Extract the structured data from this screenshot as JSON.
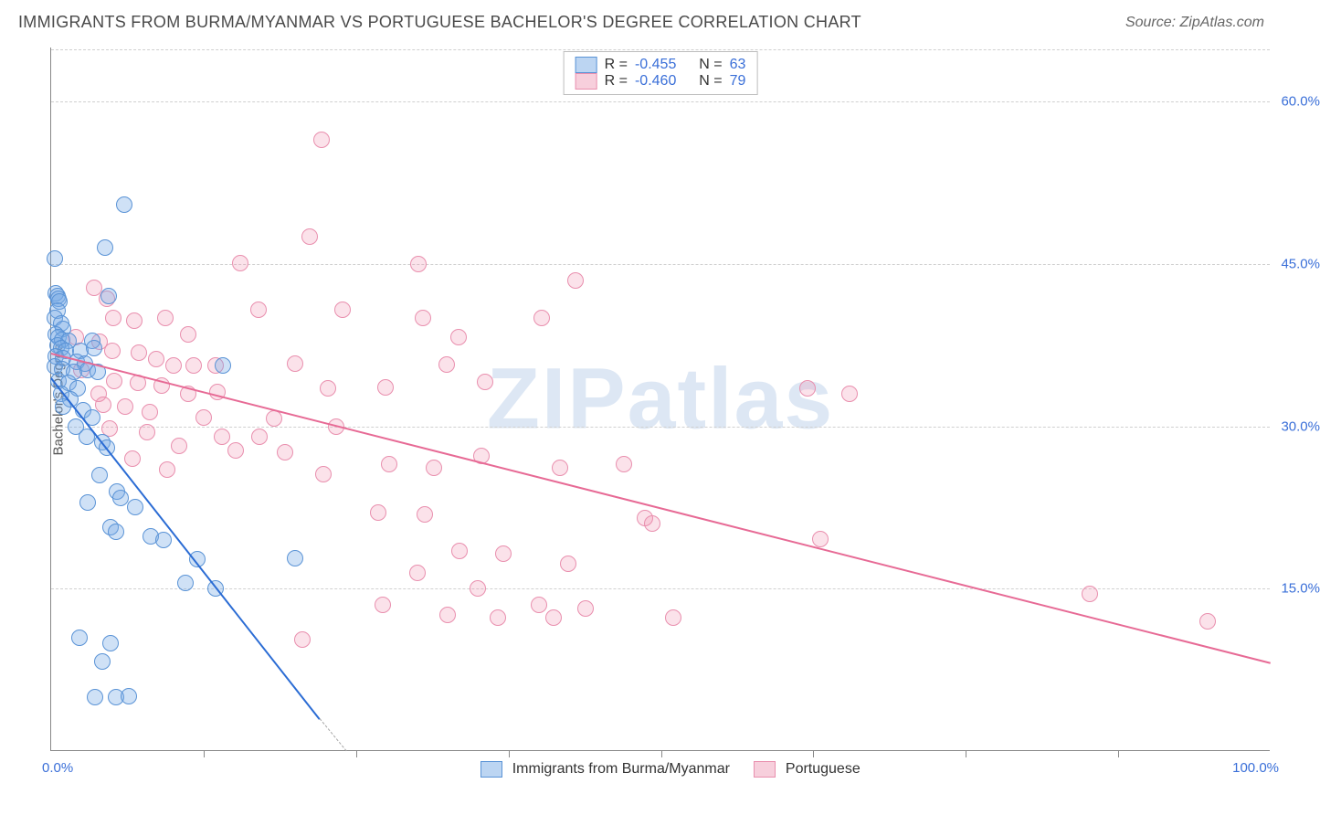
{
  "title": "IMMIGRANTS FROM BURMA/MYANMAR VS PORTUGUESE BACHELOR'S DEGREE CORRELATION CHART",
  "source": "Source: ZipAtlas.com",
  "watermark": "ZIPatlas",
  "chart": {
    "type": "scatter",
    "ylabel": "Bachelor's Degree",
    "xlim": [
      0,
      100
    ],
    "ylim": [
      0,
      65
    ],
    "xtick_positions": [
      12.5,
      25,
      37.5,
      50,
      62.5,
      75,
      87.5
    ],
    "ytick_labels": [
      "15.0%",
      "30.0%",
      "45.0%",
      "60.0%"
    ],
    "ytick_values": [
      15,
      30,
      45,
      60
    ],
    "xzero_label": "0.0%",
    "xmax_label": "100.0%",
    "grid_color": "#d0d0d0",
    "background_color": "#ffffff",
    "axis_color": "#888888",
    "tick_label_color": "#3a6fd8",
    "marker_radius": 9,
    "series": {
      "blue": {
        "label": "Immigrants from Burma/Myanmar",
        "fill": "rgba(117,169,229,0.35)",
        "stroke": "#5a93d6",
        "swatch_fill": "#bcd5f2",
        "swatch_stroke": "#5a93d6",
        "R": "-0.455",
        "N": "63",
        "regression": {
          "x1": 0,
          "y1": 34.5,
          "x2": 22,
          "y2": 3,
          "color": "#2b6cd4",
          "dash_extension_to_x": 24.2
        },
        "points": [
          [
            0.3,
            45.5
          ],
          [
            0.4,
            42.3
          ],
          [
            0.5,
            42.0
          ],
          [
            0.6,
            41.8
          ],
          [
            0.7,
            41.5
          ],
          [
            0.5,
            40.7
          ],
          [
            0.3,
            40.0
          ],
          [
            0.8,
            39.5
          ],
          [
            1.0,
            39.0
          ],
          [
            0.4,
            38.5
          ],
          [
            0.6,
            38.2
          ],
          [
            0.9,
            38.0
          ],
          [
            1.4,
            37.9
          ],
          [
            3.4,
            37.9
          ],
          [
            0.5,
            37.5
          ],
          [
            0.8,
            37.2
          ],
          [
            1.2,
            37.0
          ],
          [
            2.4,
            37.0
          ],
          [
            3.5,
            37.2
          ],
          [
            4.7,
            42.0
          ],
          [
            6.0,
            50.5
          ],
          [
            0.4,
            36.5
          ],
          [
            1.0,
            36.3
          ],
          [
            2.1,
            36.0
          ],
          [
            2.8,
            35.8
          ],
          [
            4.4,
            46.5
          ],
          [
            0.3,
            35.5
          ],
          [
            0.9,
            35.3
          ],
          [
            1.9,
            35.0
          ],
          [
            3.0,
            35.2
          ],
          [
            3.8,
            35.0
          ],
          [
            14.1,
            35.6
          ],
          [
            0.6,
            34.2
          ],
          [
            1.4,
            34.0
          ],
          [
            2.2,
            33.5
          ],
          [
            0.8,
            33.0
          ],
          [
            1.6,
            32.5
          ],
          [
            2.6,
            31.5
          ],
          [
            3.4,
            30.8
          ],
          [
            1.0,
            31.8
          ],
          [
            2.0,
            30.0
          ],
          [
            2.9,
            29.0
          ],
          [
            4.2,
            28.5
          ],
          [
            4.6,
            28.0
          ],
          [
            4.0,
            25.5
          ],
          [
            5.4,
            24.0
          ],
          [
            5.7,
            23.4
          ],
          [
            6.9,
            22.5
          ],
          [
            3.0,
            23.0
          ],
          [
            4.9,
            20.7
          ],
          [
            5.3,
            20.3
          ],
          [
            8.2,
            19.8
          ],
          [
            9.2,
            19.5
          ],
          [
            12.0,
            17.7
          ],
          [
            20.0,
            17.8
          ],
          [
            11.0,
            15.5
          ],
          [
            13.5,
            15.0
          ],
          [
            2.3,
            10.5
          ],
          [
            4.9,
            10.0
          ],
          [
            4.2,
            8.3
          ],
          [
            3.6,
            5.0
          ],
          [
            5.3,
            5.0
          ],
          [
            6.4,
            5.1
          ]
        ]
      },
      "pink": {
        "label": "Portuguese",
        "fill": "rgba(240,140,170,0.25)",
        "stroke": "#e98fae",
        "swatch_fill": "#f7cfdc",
        "swatch_stroke": "#e98fae",
        "R": "-0.460",
        "N": "79",
        "regression": {
          "x1": 0,
          "y1": 36.8,
          "x2": 100,
          "y2": 8.2,
          "color": "#e76a95"
        },
        "points": [
          [
            22.2,
            56.5
          ],
          [
            30.1,
            45.0
          ],
          [
            21.2,
            47.5
          ],
          [
            15.5,
            45.1
          ],
          [
            3.5,
            42.8
          ],
          [
            4.6,
            41.8
          ],
          [
            5.1,
            40.0
          ],
          [
            6.8,
            39.8
          ],
          [
            9.4,
            40.0
          ],
          [
            17.0,
            40.8
          ],
          [
            23.9,
            40.8
          ],
          [
            30.5,
            40.0
          ],
          [
            40.2,
            40.0
          ],
          [
            43.0,
            43.5
          ],
          [
            33.4,
            38.2
          ],
          [
            2.0,
            38.2
          ],
          [
            4.0,
            37.8
          ],
          [
            5.0,
            37.0
          ],
          [
            7.2,
            36.8
          ],
          [
            8.6,
            36.2
          ],
          [
            10.0,
            35.6
          ],
          [
            11.7,
            35.6
          ],
          [
            13.5,
            35.6
          ],
          [
            20.0,
            35.8
          ],
          [
            32.4,
            35.7
          ],
          [
            5.2,
            34.2
          ],
          [
            7.1,
            34.0
          ],
          [
            9.1,
            33.8
          ],
          [
            11.2,
            33.0
          ],
          [
            13.6,
            33.2
          ],
          [
            22.7,
            33.5
          ],
          [
            27.4,
            33.6
          ],
          [
            35.6,
            34.1
          ],
          [
            4.3,
            32.0
          ],
          [
            6.1,
            31.8
          ],
          [
            8.1,
            31.3
          ],
          [
            12.5,
            30.8
          ],
          [
            18.3,
            30.7
          ],
          [
            23.4,
            30.0
          ],
          [
            27.7,
            26.5
          ],
          [
            31.4,
            26.2
          ],
          [
            35.3,
            27.3
          ],
          [
            41.7,
            26.2
          ],
          [
            47.0,
            26.5
          ],
          [
            65.5,
            33.0
          ],
          [
            10.5,
            28.2
          ],
          [
            15.1,
            27.8
          ],
          [
            19.2,
            27.6
          ],
          [
            22.3,
            25.6
          ],
          [
            26.8,
            22.0
          ],
          [
            30.6,
            21.9
          ],
          [
            48.7,
            21.5
          ],
          [
            49.3,
            21.0
          ],
          [
            63.1,
            19.6
          ],
          [
            33.5,
            18.5
          ],
          [
            37.1,
            18.2
          ],
          [
            42.4,
            17.3
          ],
          [
            30.0,
            16.5
          ],
          [
            35.0,
            15.0
          ],
          [
            40.0,
            13.5
          ],
          [
            27.2,
            13.5
          ],
          [
            32.5,
            12.6
          ],
          [
            36.6,
            12.3
          ],
          [
            41.2,
            12.3
          ],
          [
            43.8,
            13.2
          ],
          [
            85.2,
            14.5
          ],
          [
            94.8,
            12.0
          ],
          [
            51.0,
            12.3
          ],
          [
            20.6,
            10.3
          ],
          [
            7.9,
            29.5
          ],
          [
            14.0,
            29.0
          ],
          [
            17.1,
            29.0
          ],
          [
            6.7,
            27.0
          ],
          [
            9.5,
            26.0
          ],
          [
            3.9,
            33.0
          ],
          [
            4.8,
            29.8
          ],
          [
            62.0,
            33.5
          ],
          [
            11.2,
            38.5
          ],
          [
            2.5,
            35.2
          ]
        ]
      }
    },
    "legend_prefix_R": "R = ",
    "legend_prefix_N": "N = "
  }
}
